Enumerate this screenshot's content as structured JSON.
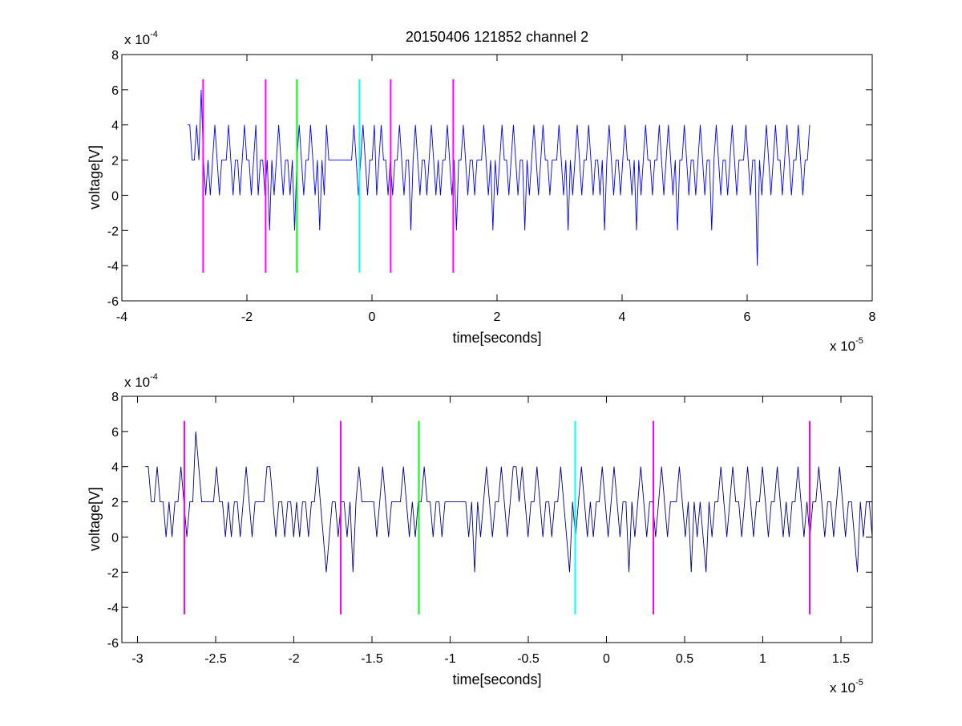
{
  "figure": {
    "title": "20150406 121852 channel 2",
    "background": "#ffffff",
    "axes_color": "#000000"
  },
  "chart_data": [
    {
      "type": "line",
      "title": "20150406 121852 channel 2",
      "xlabel": "time[seconds]",
      "ylabel": "voltage[V]",
      "x_exponent_base": "x 10",
      "x_exponent_power": "-5",
      "y_exponent_base": "x 10",
      "y_exponent_power": "-4",
      "x_unit_scale": 1e-05,
      "y_unit_scale": 0.0001,
      "xlim": [
        -4,
        8
      ],
      "ylim": [
        -6,
        8
      ],
      "xticks": [
        -4,
        -2,
        0,
        2,
        4,
        6,
        8
      ],
      "xtick_labels": [
        "-4",
        "-2",
        "0",
        "2",
        "4",
        "6",
        "8"
      ],
      "yticks": [
        -6,
        -4,
        -2,
        0,
        2,
        4,
        6,
        8
      ],
      "ytick_labels": [
        "-6",
        "-4",
        "-2",
        "0",
        "2",
        "4",
        "6",
        "8"
      ],
      "grid": false,
      "signal": {
        "color": "#0000ff",
        "x_start": -2.95,
        "x_end": 7.0,
        "level_step": 2,
        "levels": [
          4,
          4,
          2,
          2,
          4,
          2,
          6,
          2,
          0,
          2,
          0,
          2,
          4,
          2,
          0,
          2,
          2,
          2,
          4,
          2,
          0,
          2,
          2,
          0,
          2,
          4,
          2,
          2,
          0,
          2,
          4,
          0,
          2,
          2,
          0,
          2,
          -2,
          2,
          0,
          2,
          4,
          2,
          0,
          2,
          2,
          0,
          2,
          -2,
          2,
          4,
          2,
          0,
          2,
          2,
          4,
          2,
          0,
          2,
          -2,
          2,
          0,
          4,
          2,
          2,
          2,
          2,
          2,
          2,
          2,
          2,
          2,
          2,
          2,
          4,
          2,
          0,
          2,
          4,
          2,
          0,
          2,
          2,
          4,
          0,
          2,
          4,
          2,
          2,
          0,
          2,
          0,
          2,
          2,
          4,
          2,
          0,
          2,
          2,
          -2,
          2,
          4,
          2,
          0,
          2,
          2,
          0,
          2,
          4,
          2,
          0,
          2,
          0,
          2,
          2,
          4,
          2,
          0,
          2,
          -2,
          2,
          2,
          4,
          2,
          0,
          2,
          2,
          0,
          2,
          2,
          2,
          4,
          2,
          0,
          2,
          -2,
          2,
          0,
          2,
          4,
          2,
          2,
          0,
          2,
          4,
          2,
          0,
          2,
          2,
          -2,
          2,
          0,
          2,
          4,
          2,
          0,
          2,
          4,
          2,
          2,
          0,
          2,
          2,
          2,
          4,
          2,
          0,
          2,
          -2,
          2,
          0,
          2,
          4,
          2,
          0,
          2,
          2,
          4,
          2,
          0,
          2,
          2,
          0,
          2,
          -2,
          2,
          4,
          2,
          0,
          2,
          2,
          0,
          2,
          4,
          2,
          2,
          0,
          2,
          -2,
          2,
          0,
          2,
          4,
          2,
          2,
          0,
          2,
          2,
          4,
          2,
          0,
          2,
          4,
          2,
          0,
          2,
          -2,
          2,
          2,
          4,
          2,
          0,
          2,
          2,
          0,
          2,
          4,
          2,
          0,
          2,
          2,
          -2,
          2,
          4,
          2,
          0,
          2,
          2,
          0,
          2,
          4,
          2,
          0,
          2,
          2,
          2,
          4,
          2,
          0,
          2,
          2,
          -4,
          2,
          0,
          2,
          4,
          2,
          0,
          2,
          4,
          2,
          2,
          0,
          2,
          4,
          2,
          0,
          2,
          2,
          4,
          2,
          0,
          2,
          2,
          4
        ]
      },
      "markers": [
        {
          "x": -2.7,
          "color": "#ff00ff",
          "y_range": [
            -4.4,
            6.6
          ]
        },
        {
          "x": -1.7,
          "color": "#ff00ff",
          "y_range": [
            -4.4,
            6.6
          ]
        },
        {
          "x": -1.2,
          "color": "#00ff00",
          "y_range": [
            -4.4,
            6.6
          ]
        },
        {
          "x": -0.2,
          "color": "#00ffff",
          "y_range": [
            -4.4,
            6.6
          ]
        },
        {
          "x": 0.3,
          "color": "#ff00ff",
          "y_range": [
            -4.4,
            6.6
          ]
        },
        {
          "x": 1.3,
          "color": "#ff00ff",
          "y_range": [
            -4.4,
            6.6
          ]
        }
      ]
    },
    {
      "type": "line",
      "title": "",
      "xlabel": "time[seconds]",
      "ylabel": "voltage[V]",
      "x_exponent_base": "x 10",
      "x_exponent_power": "-5",
      "y_exponent_base": "x 10",
      "y_exponent_power": "-4",
      "x_unit_scale": 1e-05,
      "y_unit_scale": 0.0001,
      "xlim": [
        -3.1,
        1.7
      ],
      "ylim": [
        -6,
        8
      ],
      "xticks": [
        -3,
        -2.5,
        -2,
        -1.5,
        -1,
        -0.5,
        0,
        0.5,
        1,
        1.5
      ],
      "xtick_labels": [
        "-3",
        "-2.5",
        "-2",
        "-1.5",
        "-1",
        "-0.5",
        "0",
        "0.5",
        "1",
        "1.5"
      ],
      "yticks": [
        -6,
        -4,
        -2,
        0,
        2,
        4,
        6,
        8
      ],
      "ytick_labels": [
        "-6",
        "-4",
        "-2",
        "0",
        "2",
        "4",
        "6",
        "8"
      ],
      "grid": false,
      "signal": {
        "color": "#00008b",
        "x_start": -2.95,
        "x_end": 1.7,
        "level_step": 2,
        "levels": [
          4,
          4,
          2,
          2,
          4,
          2,
          2,
          0,
          2,
          0,
          2,
          2,
          4,
          2,
          0,
          2,
          2,
          6,
          4,
          2,
          2,
          2,
          2,
          2,
          4,
          2,
          2,
          0,
          2,
          0,
          2,
          2,
          0,
          2,
          4,
          2,
          0,
          2,
          2,
          2,
          2,
          4,
          4,
          2,
          0,
          2,
          2,
          0,
          2,
          2,
          0,
          2,
          0,
          2,
          2,
          0,
          2,
          2,
          4,
          2,
          0,
          -2,
          0,
          2,
          2,
          0,
          2,
          2,
          0,
          2,
          -2,
          2,
          4,
          2,
          2,
          2,
          2,
          2,
          0,
          2,
          4,
          2,
          0,
          2,
          2,
          2,
          2,
          4,
          2,
          0,
          2,
          0,
          2,
          2,
          4,
          2,
          2,
          0,
          2,
          2,
          0,
          2,
          2,
          2,
          2,
          2,
          2,
          2,
          2,
          0,
          2,
          -2,
          2,
          0,
          2,
          4,
          2,
          0,
          2,
          2,
          4,
          2,
          0,
          2,
          4,
          4,
          2,
          4,
          2,
          0,
          2,
          2,
          4,
          2,
          0,
          2,
          2,
          0,
          2,
          2,
          4,
          2,
          0,
          -2,
          2,
          0,
          2,
          4,
          2,
          0,
          2,
          0,
          2,
          2,
          4,
          2,
          0,
          2,
          4,
          2,
          0,
          2,
          2,
          -2,
          2,
          0,
          2,
          4,
          2,
          0,
          2,
          2,
          0,
          2,
          4,
          2,
          0,
          2,
          2,
          2,
          4,
          2,
          0,
          2,
          -2,
          2,
          0,
          2,
          0,
          -2,
          2,
          0,
          2,
          2,
          4,
          2,
          0,
          2,
          4,
          2,
          2,
          0,
          2,
          4,
          2,
          0,
          2,
          2,
          4,
          2,
          0,
          2,
          2,
          4,
          2,
          0,
          2,
          0,
          2,
          2,
          4,
          2,
          0,
          2,
          0,
          2,
          2,
          4,
          2,
          0,
          2,
          2,
          0,
          2,
          4,
          2,
          0,
          2,
          2,
          0,
          -2,
          2,
          0,
          2,
          2,
          0
        ]
      },
      "markers": [
        {
          "x": -2.7,
          "color": "#ff00ff",
          "y_range": [
            -4.4,
            6.6
          ]
        },
        {
          "x": -1.7,
          "color": "#ff00ff",
          "y_range": [
            -4.4,
            6.6
          ]
        },
        {
          "x": -1.2,
          "color": "#00ff00",
          "y_range": [
            -4.4,
            6.6
          ]
        },
        {
          "x": -0.2,
          "color": "#00ffff",
          "y_range": [
            -4.4,
            6.6
          ]
        },
        {
          "x": 0.3,
          "color": "#ff00ff",
          "y_range": [
            -4.4,
            6.6
          ]
        },
        {
          "x": 1.3,
          "color": "#ff00ff",
          "y_range": [
            -4.4,
            6.6
          ]
        }
      ]
    }
  ]
}
